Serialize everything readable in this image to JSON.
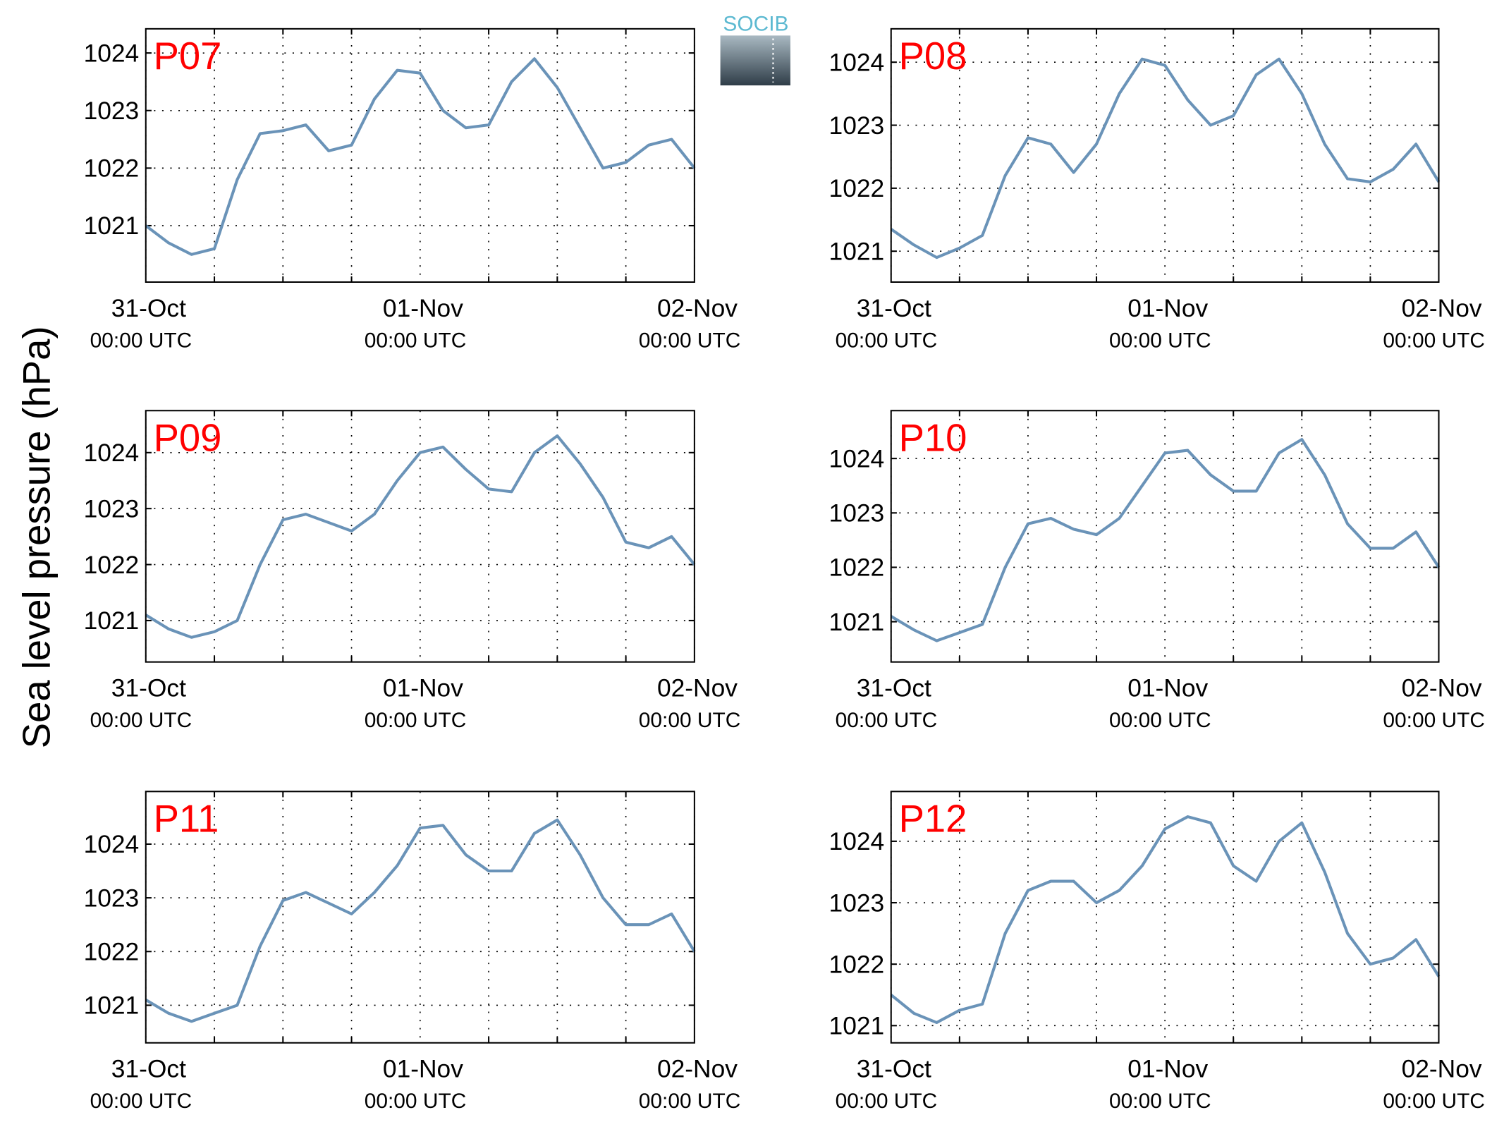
{
  "logo": "SOCIB",
  "ylabel": "Sea level pressure (hPa)",
  "chart_data": [
    {
      "type": "line",
      "title": "P07",
      "color": "#6a93b8",
      "grid": true,
      "x": [
        0,
        2,
        4,
        6,
        8,
        10,
        12,
        14,
        16,
        18,
        20,
        22,
        24,
        26,
        28,
        30,
        32,
        34,
        36,
        38,
        40,
        42,
        44,
        46,
        48
      ],
      "values": [
        1021.0,
        1020.7,
        1020.5,
        1020.6,
        1021.8,
        1022.6,
        1022.65,
        1022.75,
        1022.3,
        1022.4,
        1023.2,
        1023.7,
        1023.65,
        1023.0,
        1022.7,
        1022.75,
        1023.5,
        1023.9,
        1023.4,
        1022.7,
        1022.0,
        1022.1,
        1022.4,
        1022.5,
        1022.0
      ],
      "xlim": [
        0,
        48
      ],
      "xticks": [
        {
          "value": 0,
          "label": [
            "31-Oct",
            "00:00 UTC"
          ]
        },
        {
          "value": 24,
          "label": [
            "01-Nov",
            "00:00 UTC"
          ]
        },
        {
          "value": 48,
          "label": [
            "02-Nov",
            "00:00 UTC"
          ]
        }
      ],
      "xminorticks": [
        6,
        12,
        18,
        30,
        36,
        42
      ],
      "ylim": [
        1020.02,
        1024.42
      ],
      "yticks": [
        1021,
        1022,
        1023,
        1024
      ]
    },
    {
      "type": "line",
      "title": "P08",
      "color": "#6a93b8",
      "grid": true,
      "x": [
        0,
        2,
        4,
        6,
        8,
        10,
        12,
        14,
        16,
        18,
        20,
        22,
        24,
        26,
        28,
        30,
        32,
        34,
        36,
        38,
        40,
        42,
        44,
        46,
        48
      ],
      "values": [
        1021.35,
        1021.1,
        1020.9,
        1021.05,
        1021.25,
        1022.2,
        1022.8,
        1022.7,
        1022.25,
        1022.7,
        1023.5,
        1024.05,
        1023.95,
        1023.4,
        1023.0,
        1023.15,
        1023.8,
        1024.05,
        1023.5,
        1022.7,
        1022.15,
        1022.1,
        1022.3,
        1022.7,
        1022.1
      ],
      "xlim": [
        0,
        48
      ],
      "xticks": [
        {
          "value": 0,
          "label": [
            "31-Oct",
            "00:00 UTC"
          ]
        },
        {
          "value": 24,
          "label": [
            "01-Nov",
            "00:00 UTC"
          ]
        },
        {
          "value": 48,
          "label": [
            "02-Nov",
            "00:00 UTC"
          ]
        }
      ],
      "xminorticks": [
        6,
        12,
        18,
        30,
        36,
        42
      ],
      "ylim": [
        1020.51,
        1024.53
      ],
      "yticks": [
        1021,
        1022,
        1023,
        1024
      ]
    },
    {
      "type": "line",
      "title": "P09",
      "color": "#6a93b8",
      "grid": true,
      "x": [
        0,
        2,
        4,
        6,
        8,
        10,
        12,
        14,
        16,
        18,
        20,
        22,
        24,
        26,
        28,
        30,
        32,
        34,
        36,
        38,
        40,
        42,
        44,
        46,
        48
      ],
      "values": [
        1021.1,
        1020.85,
        1020.7,
        1020.8,
        1021.0,
        1022.0,
        1022.8,
        1022.9,
        1022.75,
        1022.6,
        1022.9,
        1023.5,
        1024.0,
        1024.1,
        1023.7,
        1023.35,
        1023.3,
        1024.0,
        1024.3,
        1023.8,
        1023.2,
        1022.4,
        1022.3,
        1022.5,
        1022.0
      ],
      "xlim": [
        0,
        48
      ],
      "xticks": [
        {
          "value": 0,
          "label": [
            "31-Oct",
            "00:00 UTC"
          ]
        },
        {
          "value": 24,
          "label": [
            "01-Nov",
            "00:00 UTC"
          ]
        },
        {
          "value": 48,
          "label": [
            "02-Nov",
            "00:00 UTC"
          ]
        }
      ],
      "xminorticks": [
        6,
        12,
        18,
        30,
        36,
        42
      ],
      "ylim": [
        1020.26,
        1024.75
      ],
      "yticks": [
        1021,
        1022,
        1023,
        1024
      ]
    },
    {
      "type": "line",
      "title": "P10",
      "color": "#6a93b8",
      "grid": true,
      "x": [
        0,
        2,
        4,
        6,
        8,
        10,
        12,
        14,
        16,
        18,
        20,
        22,
        24,
        26,
        28,
        30,
        32,
        34,
        36,
        38,
        40,
        42,
        44,
        46,
        48
      ],
      "values": [
        1021.1,
        1020.85,
        1020.65,
        1020.8,
        1020.95,
        1022.0,
        1022.8,
        1022.9,
        1022.7,
        1022.6,
        1022.9,
        1023.5,
        1024.1,
        1024.15,
        1023.7,
        1023.4,
        1023.4,
        1024.1,
        1024.35,
        1023.7,
        1022.8,
        1022.35,
        1022.35,
        1022.65,
        1022.0
      ],
      "xlim": [
        0,
        48
      ],
      "xticks": [
        {
          "value": 0,
          "label": [
            "31-Oct",
            "00:00 UTC"
          ]
        },
        {
          "value": 24,
          "label": [
            "01-Nov",
            "00:00 UTC"
          ]
        },
        {
          "value": 48,
          "label": [
            "02-Nov",
            "00:00 UTC"
          ]
        }
      ],
      "xminorticks": [
        6,
        12,
        18,
        30,
        36,
        42
      ],
      "ylim": [
        1020.26,
        1024.88
      ],
      "yticks": [
        1021,
        1022,
        1023,
        1024
      ]
    },
    {
      "type": "line",
      "title": "P11",
      "color": "#6a93b8",
      "grid": true,
      "x": [
        0,
        2,
        4,
        6,
        8,
        10,
        12,
        14,
        16,
        18,
        20,
        22,
        24,
        26,
        28,
        30,
        32,
        34,
        36,
        38,
        40,
        42,
        44,
        46,
        48
      ],
      "values": [
        1021.1,
        1020.85,
        1020.7,
        1020.85,
        1021.0,
        1022.1,
        1022.95,
        1023.1,
        1022.9,
        1022.7,
        1023.1,
        1023.6,
        1024.3,
        1024.35,
        1023.8,
        1023.5,
        1023.5,
        1024.2,
        1024.45,
        1023.8,
        1023.0,
        1022.5,
        1022.5,
        1022.7,
        1022.0
      ],
      "xlim": [
        0,
        48
      ],
      "xticks": [
        {
          "value": 0,
          "label": [
            "31-Oct",
            "00:00 UTC"
          ]
        },
        {
          "value": 24,
          "label": [
            "01-Nov",
            "00:00 UTC"
          ]
        },
        {
          "value": 48,
          "label": [
            "02-Nov",
            "00:00 UTC"
          ]
        }
      ],
      "xminorticks": [
        6,
        12,
        18,
        30,
        36,
        42
      ],
      "ylim": [
        1020.3,
        1024.98
      ],
      "yticks": [
        1021,
        1022,
        1023,
        1024
      ]
    },
    {
      "type": "line",
      "title": "P12",
      "color": "#6a93b8",
      "grid": true,
      "x": [
        0,
        2,
        4,
        6,
        8,
        10,
        12,
        14,
        16,
        18,
        20,
        22,
        24,
        26,
        28,
        30,
        32,
        34,
        36,
        38,
        40,
        42,
        44,
        46,
        48
      ],
      "values": [
        1021.5,
        1021.2,
        1021.05,
        1021.25,
        1021.35,
        1022.5,
        1023.2,
        1023.35,
        1023.35,
        1023.0,
        1023.2,
        1023.6,
        1024.2,
        1024.4,
        1024.3,
        1023.6,
        1023.35,
        1024.0,
        1024.3,
        1023.5,
        1022.5,
        1022.0,
        1022.1,
        1022.4,
        1021.8
      ],
      "xlim": [
        0,
        48
      ],
      "xticks": [
        {
          "value": 0,
          "label": [
            "31-Oct",
            "00:00 UTC"
          ]
        },
        {
          "value": 24,
          "label": [
            "01-Nov",
            "00:00 UTC"
          ]
        },
        {
          "value": 48,
          "label": [
            "02-Nov",
            "00:00 UTC"
          ]
        }
      ],
      "xminorticks": [
        6,
        12,
        18,
        30,
        36,
        42
      ],
      "ylim": [
        1020.72,
        1024.81
      ],
      "yticks": [
        1021,
        1022,
        1023,
        1024
      ]
    }
  ]
}
